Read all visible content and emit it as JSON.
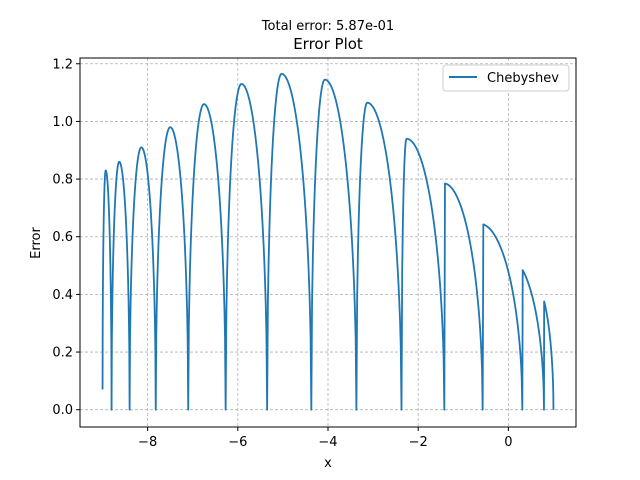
{
  "chart_data": {
    "type": "line",
    "suptitle": "Total error: 5.87e-01",
    "title": "Error Plot",
    "xlabel": "x",
    "ylabel": "Error",
    "xlim": [
      -9.5,
      1.5
    ],
    "ylim": [
      -0.06,
      1.22
    ],
    "xticks": [
      -8,
      -6,
      -4,
      -2,
      0
    ],
    "xtick_labels": [
      "−8",
      "−6",
      "−4",
      "−2",
      "0"
    ],
    "yticks": [
      0.0,
      0.2,
      0.4,
      0.6,
      0.8,
      1.0,
      1.2
    ],
    "ytick_labels": [
      "0.0",
      "0.2",
      "0.4",
      "0.6",
      "0.8",
      "1.0",
      "1.2"
    ],
    "grid": true,
    "legend_position": "top-right",
    "series": [
      {
        "name": "Chebyshev",
        "color": "#1f77b4",
        "x_start": -9.0,
        "x_end": 1.0,
        "y_start": 0.07,
        "y_end": 0.0,
        "zeros": [
          -8.8,
          -8.4,
          -7.82,
          -7.1,
          -6.27,
          -5.35,
          -4.37,
          -3.37,
          -2.37,
          -1.42,
          -0.57,
          0.31,
          0.79
        ],
        "peaks": [
          {
            "x": -8.93,
            "y": 0.83
          },
          {
            "x": -8.63,
            "y": 0.86
          },
          {
            "x": -8.14,
            "y": 0.91
          },
          {
            "x": -7.5,
            "y": 0.98
          },
          {
            "x": -6.75,
            "y": 1.06
          },
          {
            "x": -5.92,
            "y": 1.13
          },
          {
            "x": -5.03,
            "y": 1.165
          },
          {
            "x": -4.07,
            "y": 1.145
          },
          {
            "x": -3.13,
            "y": 1.065
          },
          {
            "x": -2.26,
            "y": 0.94
          },
          {
            "x": -1.43,
            "y": 0.785
          },
          {
            "x": -0.63,
            "y": 0.645
          },
          {
            "x": 0.02,
            "y": 0.525
          },
          {
            "x": 0.57,
            "y": 0.44
          },
          {
            "x": 0.93,
            "y": 0.385
          }
        ]
      }
    ]
  }
}
